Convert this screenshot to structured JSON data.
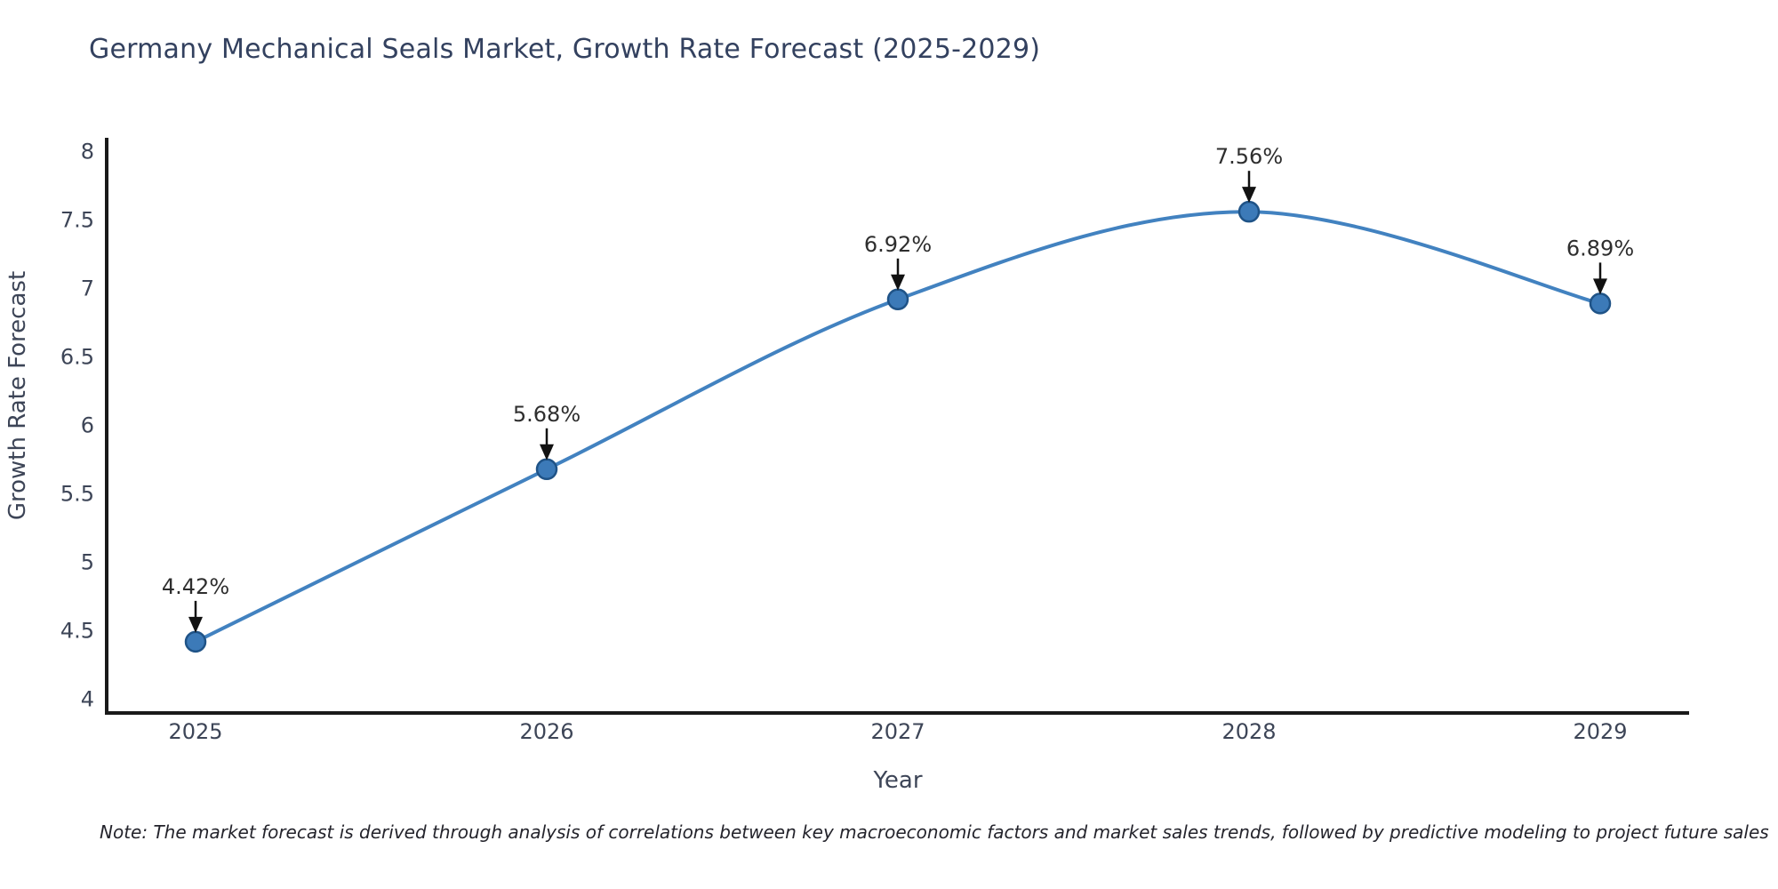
{
  "chart_data": {
    "type": "line",
    "title": "Germany Mechanical Seals Market, Growth Rate Forecast (2025-2029)",
    "xlabel": "Year",
    "ylabel": "Growth Rate Forecast",
    "categories": [
      "2025",
      "2026",
      "2027",
      "2028",
      "2029"
    ],
    "values": [
      4.42,
      5.68,
      6.92,
      7.56,
      6.89
    ],
    "point_labels": [
      "4.42%",
      "5.68%",
      "6.92%",
      "7.56%",
      "6.89%"
    ],
    "y_ticks": [
      4,
      4.5,
      5,
      5.5,
      6,
      6.5,
      7,
      7.5,
      8
    ],
    "ylim": [
      3.9,
      8.1
    ],
    "grid": false,
    "legend": "none",
    "smooth": true,
    "colors": {
      "line": "#4282c0",
      "marker_fill": "#3c7ab8",
      "marker_edge": "#1f5387",
      "axis": "#1a1a1a",
      "tick_text": "#3d4557",
      "title_text": "#33415f",
      "annotation_text": "#2e2e2e",
      "arrow": "#121212",
      "background": "#ffffff"
    }
  },
  "note": "Note: The market forecast is derived through analysis of correlations between key macroeconomic factors and market sales trends, followed by predictive modeling to project future sales"
}
